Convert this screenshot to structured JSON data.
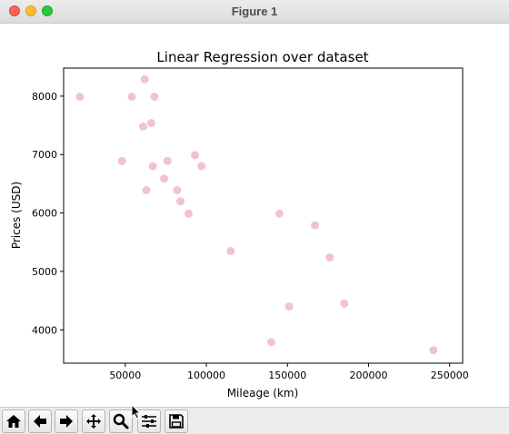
{
  "window": {
    "title": "Figure 1"
  },
  "toolbar": {
    "buttons": [
      {
        "name": "home-button",
        "icon": "home-icon"
      },
      {
        "name": "back-button",
        "icon": "arrow-left-icon"
      },
      {
        "name": "forward-button",
        "icon": "arrow-right-icon"
      },
      {
        "name": "pan-button",
        "icon": "move-icon"
      },
      {
        "name": "zoom-button",
        "icon": "magnifier-icon"
      },
      {
        "name": "configure-subplots-button",
        "icon": "sliders-icon"
      },
      {
        "name": "save-button",
        "icon": "floppy-disk-icon"
      }
    ]
  },
  "chart_data": {
    "type": "scatter",
    "title": "Linear Regression over dataset",
    "xlabel": "Mileage (km)",
    "ylabel": "Prices (USD)",
    "xlim": [
      12000,
      258000
    ],
    "ylim": [
      3430,
      8480
    ],
    "xticks": [
      50000,
      100000,
      150000,
      200000,
      250000
    ],
    "yticks": [
      4000,
      5000,
      6000,
      7000,
      8000
    ],
    "grid": false,
    "marker_color": "#f1c4cb",
    "points": [
      {
        "x": 22000,
        "y": 7990
      },
      {
        "x": 62000,
        "y": 8290
      },
      {
        "x": 54000,
        "y": 7990
      },
      {
        "x": 68000,
        "y": 7990
      },
      {
        "x": 66000,
        "y": 7540
      },
      {
        "x": 61000,
        "y": 7480
      },
      {
        "x": 48000,
        "y": 6890
      },
      {
        "x": 67000,
        "y": 6800
      },
      {
        "x": 76000,
        "y": 6890
      },
      {
        "x": 93000,
        "y": 6990
      },
      {
        "x": 97000,
        "y": 6800
      },
      {
        "x": 74000,
        "y": 6590
      },
      {
        "x": 63000,
        "y": 6390
      },
      {
        "x": 82000,
        "y": 6390
      },
      {
        "x": 84000,
        "y": 6200
      },
      {
        "x": 89000,
        "y": 5990
      },
      {
        "x": 145000,
        "y": 5990
      },
      {
        "x": 167000,
        "y": 5790
      },
      {
        "x": 115000,
        "y": 5350
      },
      {
        "x": 176000,
        "y": 5240
      },
      {
        "x": 185000,
        "y": 4450
      },
      {
        "x": 151000,
        "y": 4400
      },
      {
        "x": 140000,
        "y": 3790
      },
      {
        "x": 240000,
        "y": 3650
      }
    ]
  }
}
